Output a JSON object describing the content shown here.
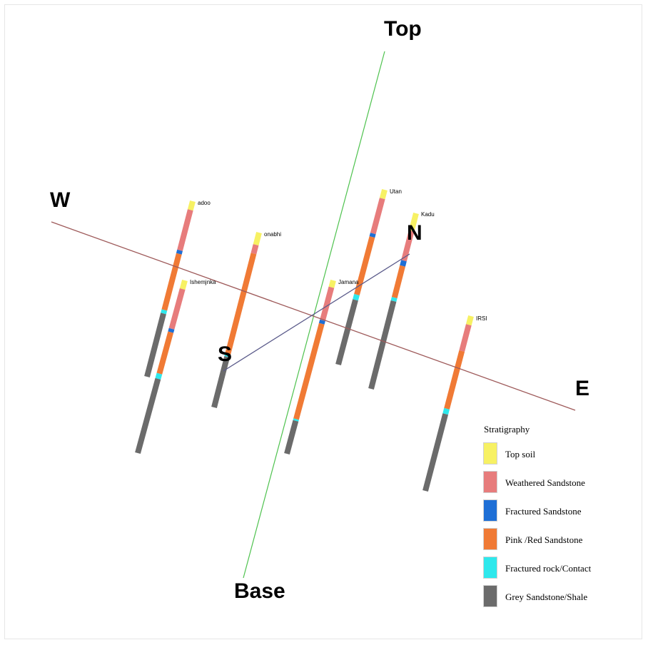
{
  "axes": {
    "top": "Top",
    "base": "Base",
    "west": "W",
    "east": "E",
    "south": "S",
    "north": "N"
  },
  "colors": {
    "top_base_line": "#4ec24e",
    "west_east_line": "#9e5a5a",
    "south_north_line": "#5a5a8a"
  },
  "wells": [
    {
      "name": "adoo"
    },
    {
      "name": "Ishemjnka"
    },
    {
      "name": "onabhi"
    },
    {
      "name": "Jamana"
    },
    {
      "name": "Utan"
    },
    {
      "name": "Kadu"
    },
    {
      "name": "IRSI"
    }
  ],
  "legend": {
    "title": "Stratigraphy",
    "items": [
      {
        "label": "Top soil",
        "color": "#f7f163"
      },
      {
        "label": "Weathered Sandstone",
        "color": "#e77c7c"
      },
      {
        "label": "Fractured Sandstone",
        "color": "#1e6fd6"
      },
      {
        "label": "Pink /Red Sandstone",
        "color": "#f07a35"
      },
      {
        "label": "Fractured rock/Contact",
        "color": "#2ee8ec"
      },
      {
        "label": "Grey Sandstone/Shale",
        "color": "#6b6b6b"
      }
    ]
  }
}
